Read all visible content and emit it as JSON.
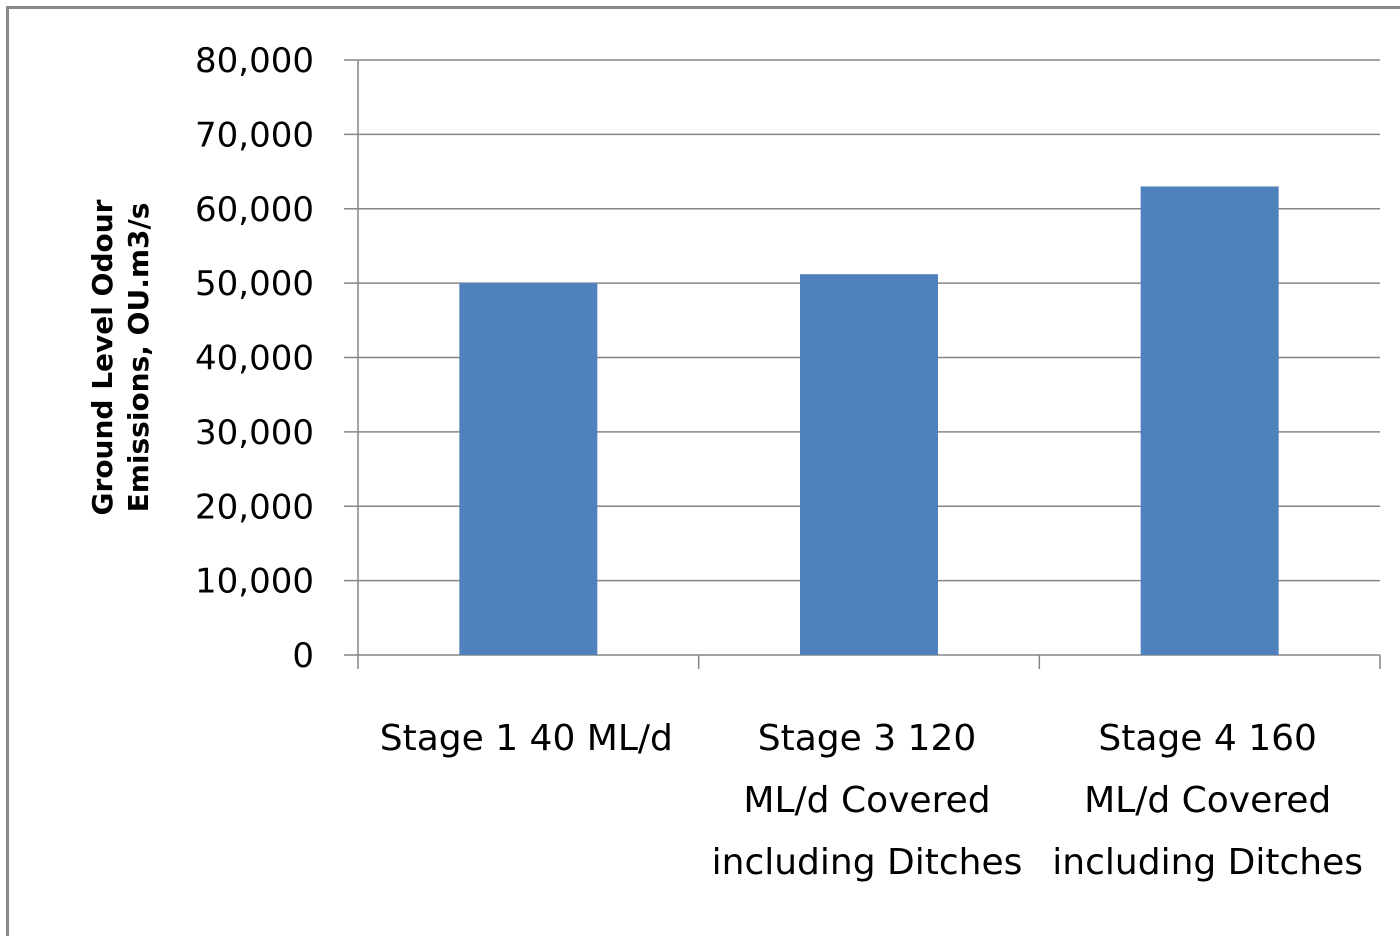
{
  "chart_data": {
    "type": "bar",
    "categories": [
      "Stage 1  40 ML/d",
      "Stage 3  120 ML/d  Covered including Ditches",
      "Stage 4  160 ML/d  Covered including Ditches"
    ],
    "category_lines": [
      [
        "Stage 1  40 ML/d"
      ],
      [
        "Stage 3  120",
        "ML/d  Covered",
        "including Ditches"
      ],
      [
        "Stage 4  160",
        "ML/d  Covered",
        "including Ditches"
      ]
    ],
    "values": [
      50000,
      51200,
      63000
    ],
    "ylabel_lines": [
      "Ground Level Odour",
      "Emissions, OU.m3/s"
    ],
    "ylim": [
      0,
      80000
    ],
    "ytick_step": 10000,
    "ytick_labels": [
      "0",
      "10,000",
      "20,000",
      "30,000",
      "40,000",
      "50,000",
      "60,000",
      "70,000",
      "80,000"
    ],
    "grid": true,
    "legend": "none",
    "bar_color": "#4f81bd",
    "grid_color": "#868686"
  }
}
